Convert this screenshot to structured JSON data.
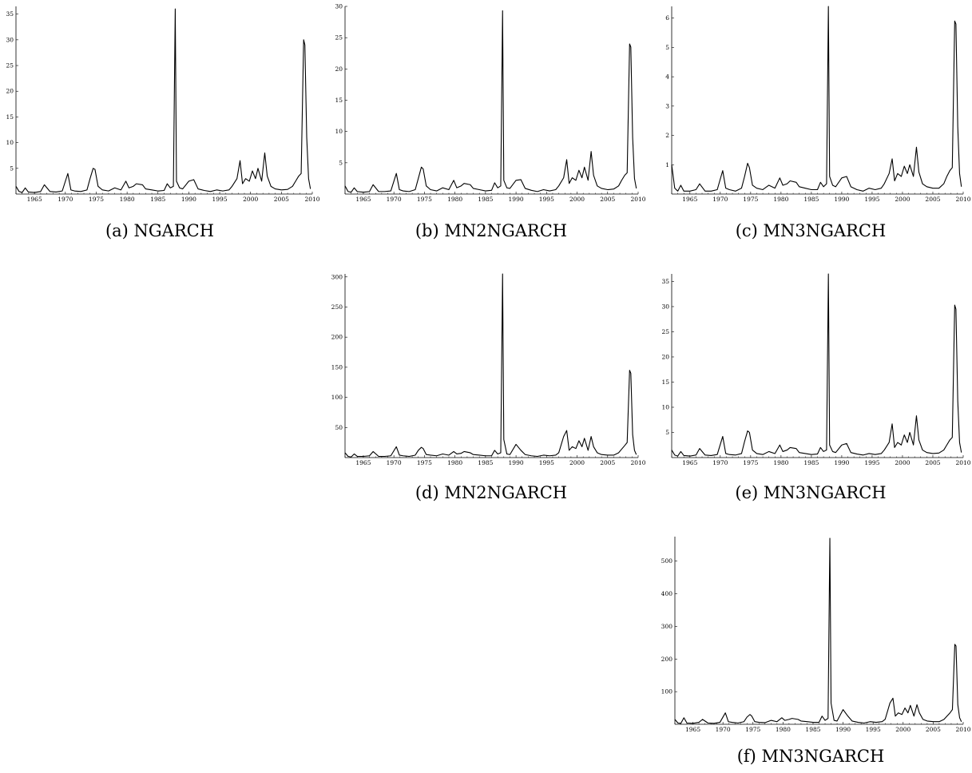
{
  "chart_data": [
    {
      "id": "a",
      "type": "line",
      "caption": "(a) NGARCH",
      "x_ticks": [
        1965,
        1970,
        1975,
        1980,
        1985,
        1990,
        1995,
        2000,
        2005,
        2010
      ],
      "y_ticks": [
        5,
        10,
        15,
        20,
        25,
        30,
        35
      ],
      "xlim": [
        1962,
        2010
      ],
      "ylim": [
        0,
        36.5
      ],
      "series": [
        {
          "x": [
            1962.0,
            1962.5,
            1963.0,
            1963.5,
            1964.0,
            1965.0,
            1966.0,
            1966.6,
            1967.5,
            1968.5,
            1969.5,
            1970.4,
            1970.9,
            1971.5,
            1972.5,
            1973.5,
            1974.0,
            1974.5,
            1974.8,
            1975.3,
            1976.0,
            1977.0,
            1978.0,
            1979.0,
            1979.8,
            1980.3,
            1981.0,
            1981.5,
            1982.5,
            1983.0,
            1984.0,
            1985.0,
            1986.0,
            1986.5,
            1987.0,
            1987.5,
            1987.8,
            1988.0,
            1988.5,
            1989.0,
            1990.0,
            1990.8,
            1991.5,
            1992.5,
            1993.5,
            1994.5,
            1995.5,
            1996.5,
            1997.0,
            1997.8,
            1998.3,
            1998.7,
            1999.2,
            1999.8,
            2000.3,
            2000.8,
            2001.2,
            2001.8,
            2002.3,
            2002.7,
            2003.3,
            2004.0,
            2005.0,
            2006.0,
            2006.8,
            2007.3,
            2007.8,
            2008.2,
            2008.6,
            2008.8,
            2009.1,
            2009.4,
            2009.7
          ],
          "y": [
            1.5,
            0.5,
            0.3,
            1.2,
            0.4,
            0.3,
            0.5,
            1.8,
            0.5,
            0.4,
            0.6,
            4.0,
            0.8,
            0.6,
            0.5,
            0.8,
            3.0,
            5.0,
            4.8,
            1.5,
            0.8,
            0.6,
            1.2,
            0.8,
            2.5,
            1.2,
            1.5,
            2.0,
            1.8,
            1.0,
            0.8,
            0.6,
            0.7,
            2.0,
            1.2,
            1.5,
            36.0,
            2.5,
            1.2,
            1.0,
            2.5,
            2.8,
            1.0,
            0.7,
            0.5,
            0.8,
            0.6,
            0.8,
            1.5,
            3.0,
            6.5,
            2.0,
            3.0,
            2.5,
            4.5,
            3.0,
            5.0,
            2.5,
            8.0,
            3.5,
            1.5,
            1.0,
            0.8,
            0.9,
            1.5,
            2.5,
            3.5,
            4.0,
            30.0,
            29.0,
            11.0,
            3.0,
            1.0
          ]
        }
      ]
    },
    {
      "id": "b",
      "type": "line",
      "caption": "(b) MN2NGARCH",
      "x_ticks": [
        1965,
        1970,
        1975,
        1980,
        1985,
        1990,
        1995,
        2000,
        2005,
        2010
      ],
      "y_ticks": [
        5,
        10,
        15,
        20,
        25,
        30
      ],
      "xlim": [
        1962,
        2010
      ],
      "ylim": [
        0,
        30
      ],
      "series": [
        {
          "x": [
            1962.0,
            1962.5,
            1963.0,
            1963.5,
            1964.0,
            1965.0,
            1966.0,
            1966.6,
            1967.5,
            1968.5,
            1969.5,
            1970.4,
            1970.9,
            1971.5,
            1972.5,
            1973.5,
            1974.0,
            1974.5,
            1974.8,
            1975.3,
            1976.0,
            1977.0,
            1978.0,
            1979.0,
            1979.8,
            1980.3,
            1981.0,
            1981.5,
            1982.5,
            1983.0,
            1984.0,
            1985.0,
            1986.0,
            1986.5,
            1987.0,
            1987.5,
            1987.8,
            1988.0,
            1988.5,
            1989.0,
            1990.0,
            1990.8,
            1991.5,
            1992.5,
            1993.5,
            1994.5,
            1995.5,
            1996.5,
            1997.0,
            1997.8,
            1998.3,
            1998.7,
            1999.2,
            1999.8,
            2000.3,
            2000.8,
            2001.2,
            2001.8,
            2002.3,
            2002.7,
            2003.3,
            2004.0,
            2005.0,
            2006.0,
            2006.8,
            2007.3,
            2007.8,
            2008.2,
            2008.6,
            2008.8,
            2009.1,
            2009.4,
            2009.7
          ],
          "y": [
            1.3,
            0.4,
            0.3,
            1.0,
            0.4,
            0.3,
            0.4,
            1.5,
            0.4,
            0.4,
            0.5,
            3.3,
            0.7,
            0.5,
            0.4,
            0.7,
            2.5,
            4.3,
            4.0,
            1.3,
            0.7,
            0.5,
            1.0,
            0.7,
            2.2,
            1.0,
            1.3,
            1.7,
            1.5,
            0.9,
            0.7,
            0.5,
            0.6,
            1.8,
            1.0,
            1.3,
            29.3,
            2.2,
            1.0,
            0.9,
            2.2,
            2.3,
            0.9,
            0.6,
            0.4,
            0.7,
            0.5,
            0.7,
            1.3,
            2.6,
            5.5,
            1.7,
            2.6,
            2.2,
            3.8,
            2.6,
            4.3,
            2.2,
            6.8,
            3.0,
            1.3,
            0.9,
            0.7,
            0.8,
            1.3,
            2.2,
            3.0,
            3.4,
            24.0,
            23.5,
            9.0,
            2.5,
            0.9
          ]
        }
      ]
    },
    {
      "id": "c",
      "type": "line",
      "caption": "(c) MN3NGARCH",
      "x_ticks": [
        1965,
        1970,
        1975,
        1980,
        1985,
        1990,
        1995,
        2000,
        2005,
        2010
      ],
      "y_ticks": [
        1,
        2,
        3,
        4,
        5,
        6
      ],
      "xlim": [
        1962,
        2010
      ],
      "ylim": [
        0,
        6.4
      ],
      "series": [
        {
          "x": [
            1962.0,
            1962.5,
            1963.0,
            1963.5,
            1964.0,
            1965.0,
            1966.0,
            1966.6,
            1967.5,
            1968.5,
            1969.5,
            1970.4,
            1970.9,
            1971.5,
            1972.5,
            1973.5,
            1974.0,
            1974.5,
            1974.8,
            1975.3,
            1976.0,
            1977.0,
            1978.0,
            1979.0,
            1979.8,
            1980.3,
            1981.0,
            1981.5,
            1982.5,
            1983.0,
            1984.0,
            1985.0,
            1986.0,
            1986.5,
            1987.0,
            1987.5,
            1987.8,
            1988.0,
            1988.5,
            1989.0,
            1990.0,
            1990.8,
            1991.5,
            1992.5,
            1993.5,
            1994.5,
            1995.5,
            1996.5,
            1997.0,
            1997.8,
            1998.3,
            1998.7,
            1999.2,
            1999.8,
            2000.3,
            2000.8,
            2001.2,
            2001.8,
            2002.3,
            2002.7,
            2003.3,
            2004.0,
            2005.0,
            2006.0,
            2006.8,
            2007.3,
            2007.8,
            2008.2,
            2008.6,
            2008.8,
            2009.1,
            2009.4,
            2009.7
          ],
          "y": [
            1.0,
            0.2,
            0.1,
            0.3,
            0.1,
            0.1,
            0.15,
            0.35,
            0.1,
            0.1,
            0.15,
            0.8,
            0.2,
            0.15,
            0.1,
            0.2,
            0.6,
            1.05,
            0.9,
            0.3,
            0.2,
            0.15,
            0.3,
            0.2,
            0.55,
            0.3,
            0.35,
            0.45,
            0.4,
            0.25,
            0.2,
            0.15,
            0.15,
            0.4,
            0.25,
            0.35,
            6.4,
            0.6,
            0.3,
            0.25,
            0.55,
            0.6,
            0.25,
            0.15,
            0.1,
            0.2,
            0.15,
            0.2,
            0.35,
            0.7,
            1.2,
            0.45,
            0.7,
            0.6,
            0.95,
            0.7,
            1.0,
            0.6,
            1.6,
            0.75,
            0.35,
            0.25,
            0.2,
            0.2,
            0.35,
            0.6,
            0.8,
            0.9,
            5.9,
            5.8,
            2.3,
            0.7,
            0.25
          ]
        }
      ]
    },
    {
      "id": "d",
      "type": "line",
      "caption": "(d) MN2NGARCH",
      "x_ticks": [
        1965,
        1970,
        1975,
        1980,
        1985,
        1990,
        1995,
        2000,
        2005,
        2010
      ],
      "y_ticks": [
        50,
        100,
        150,
        200,
        250,
        300
      ],
      "xlim": [
        1962,
        2010
      ],
      "ylim": [
        0,
        305
      ],
      "series": [
        {
          "x": [
            1962.0,
            1962.5,
            1963.0,
            1963.5,
            1964.0,
            1965.0,
            1966.0,
            1966.6,
            1967.5,
            1968.5,
            1969.5,
            1970.4,
            1970.9,
            1971.5,
            1972.5,
            1973.5,
            1974.0,
            1974.5,
            1974.8,
            1975.3,
            1976.0,
            1977.0,
            1978.0,
            1979.0,
            1979.8,
            1980.3,
            1981.0,
            1981.5,
            1982.5,
            1983.0,
            1984.0,
            1985.0,
            1986.0,
            1986.5,
            1987.0,
            1987.5,
            1987.8,
            1988.0,
            1988.5,
            1989.0,
            1990.0,
            1990.8,
            1991.5,
            1992.5,
            1993.5,
            1994.5,
            1995.5,
            1996.5,
            1997.0,
            1997.8,
            1998.3,
            1998.7,
            1999.2,
            1999.8,
            2000.3,
            2000.8,
            2001.2,
            2001.8,
            2002.3,
            2002.7,
            2003.3,
            2004.0,
            2005.0,
            2006.0,
            2006.8,
            2007.3,
            2007.8,
            2008.2,
            2008.6,
            2008.8,
            2009.1,
            2009.4,
            2009.7
          ],
          "y": [
            8,
            2,
            1,
            6,
            2,
            2,
            3,
            10,
            2,
            2,
            3,
            18,
            4,
            3,
            2,
            4,
            12,
            17,
            15,
            5,
            4,
            3,
            6,
            4,
            10,
            6,
            7,
            10,
            8,
            5,
            4,
            3,
            3,
            12,
            6,
            8,
            305,
            30,
            6,
            5,
            22,
            12,
            5,
            3,
            2,
            4,
            3,
            4,
            8,
            35,
            45,
            12,
            18,
            15,
            28,
            18,
            32,
            12,
            35,
            18,
            8,
            5,
            4,
            4,
            8,
            14,
            20,
            25,
            145,
            140,
            38,
            12,
            5
          ]
        }
      ]
    },
    {
      "id": "e",
      "type": "line",
      "caption": "(e) MN3NGARCH",
      "x_ticks": [
        1965,
        1970,
        1975,
        1980,
        1985,
        1990,
        1995,
        2000,
        2005,
        2010
      ],
      "y_ticks": [
        5,
        10,
        15,
        20,
        25,
        30,
        35
      ],
      "xlim": [
        1962,
        2010
      ],
      "ylim": [
        0,
        36.5
      ],
      "series": [
        {
          "x": [
            1962.0,
            1962.5,
            1963.0,
            1963.5,
            1964.0,
            1965.0,
            1966.0,
            1966.6,
            1967.5,
            1968.5,
            1969.5,
            1970.4,
            1970.9,
            1971.5,
            1972.5,
            1973.5,
            1974.0,
            1974.5,
            1974.8,
            1975.3,
            1976.0,
            1977.0,
            1978.0,
            1979.0,
            1979.8,
            1980.3,
            1981.0,
            1981.5,
            1982.5,
            1983.0,
            1984.0,
            1985.0,
            1986.0,
            1986.5,
            1987.0,
            1987.5,
            1987.8,
            1988.0,
            1988.5,
            1989.0,
            1990.0,
            1990.8,
            1991.5,
            1992.5,
            1993.5,
            1994.5,
            1995.5,
            1996.5,
            1997.0,
            1997.8,
            1998.3,
            1998.7,
            1999.2,
            1999.8,
            2000.3,
            2000.8,
            2001.2,
            2001.8,
            2002.3,
            2002.7,
            2003.3,
            2004.0,
            2005.0,
            2006.0,
            2006.8,
            2007.3,
            2007.8,
            2008.2,
            2008.6,
            2008.8,
            2009.1,
            2009.4,
            2009.7
          ],
          "y": [
            1.5,
            0.5,
            0.3,
            1.2,
            0.4,
            0.3,
            0.5,
            1.8,
            0.5,
            0.4,
            0.6,
            4.2,
            0.8,
            0.6,
            0.5,
            0.8,
            3.2,
            5.3,
            5.0,
            1.5,
            0.8,
            0.6,
            1.2,
            0.8,
            2.5,
            1.2,
            1.5,
            2.0,
            1.8,
            1.0,
            0.8,
            0.6,
            0.7,
            2.0,
            1.2,
            1.5,
            36.5,
            2.5,
            1.2,
            1.0,
            2.5,
            2.8,
            1.0,
            0.7,
            0.5,
            0.8,
            0.6,
            0.8,
            1.5,
            3.0,
            6.7,
            2.0,
            3.0,
            2.5,
            4.5,
            3.0,
            5.0,
            2.5,
            8.3,
            3.5,
            1.5,
            1.0,
            0.8,
            0.9,
            1.5,
            2.5,
            3.5,
            4.0,
            30.3,
            29.5,
            11.3,
            3.0,
            1.0
          ]
        }
      ]
    },
    {
      "id": "f",
      "type": "line",
      "caption": "(f) MN3NGARCH",
      "x_ticks": [
        1965,
        1970,
        1975,
        1980,
        1985,
        1990,
        1995,
        2000,
        2005,
        2010
      ],
      "y_ticks": [
        100,
        200,
        300,
        400,
        500
      ],
      "xlim": [
        1962,
        2010
      ],
      "ylim": [
        0,
        575
      ],
      "series": [
        {
          "x": [
            1962.0,
            1962.5,
            1963.0,
            1963.5,
            1964.0,
            1965.0,
            1966.0,
            1966.6,
            1967.5,
            1968.5,
            1969.5,
            1970.4,
            1970.9,
            1971.5,
            1972.5,
            1973.5,
            1974.0,
            1974.5,
            1974.8,
            1975.3,
            1976.0,
            1977.0,
            1978.0,
            1979.0,
            1979.8,
            1980.3,
            1981.0,
            1981.5,
            1982.5,
            1983.0,
            1984.0,
            1985.0,
            1986.0,
            1986.5,
            1987.0,
            1987.5,
            1987.8,
            1988.0,
            1988.5,
            1989.0,
            1990.0,
            1990.8,
            1991.5,
            1992.5,
            1993.5,
            1994.5,
            1995.5,
            1996.5,
            1997.0,
            1997.8,
            1998.3,
            1998.7,
            1999.2,
            1999.8,
            2000.3,
            2000.8,
            2001.2,
            2001.8,
            2002.3,
            2002.7,
            2003.3,
            2004.0,
            2005.0,
            2006.0,
            2006.8,
            2007.3,
            2007.8,
            2008.2,
            2008.6,
            2008.8,
            2009.1,
            2009.4,
            2009.7
          ],
          "y": [
            15,
            4,
            3,
            20,
            4,
            3,
            6,
            15,
            4,
            3,
            6,
            35,
            8,
            6,
            4,
            8,
            22,
            30,
            25,
            8,
            6,
            5,
            12,
            8,
            20,
            12,
            15,
            18,
            15,
            10,
            8,
            6,
            6,
            25,
            12,
            18,
            570,
            65,
            12,
            10,
            45,
            25,
            10,
            6,
            4,
            8,
            6,
            8,
            15,
            65,
            80,
            25,
            35,
            30,
            50,
            35,
            58,
            25,
            60,
            35,
            15,
            10,
            8,
            8,
            15,
            25,
            35,
            45,
            245,
            240,
            60,
            20,
            8
          ]
        }
      ]
    }
  ]
}
